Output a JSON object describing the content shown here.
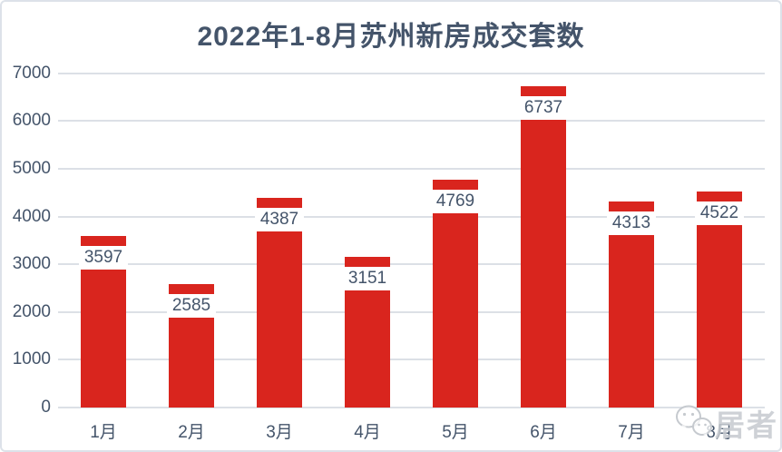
{
  "title": "2022年1-8月苏州新房成交套数",
  "watermark": {
    "text": "居者",
    "icon": "wechat-icon"
  },
  "colors": {
    "bar": "#d9251e",
    "text": "#44546a",
    "gridline": "#dce0e6",
    "card_border": "#dde2e9",
    "label_box_bg": "#ffffff",
    "watermark": "#c6cacf"
  },
  "chart_data": {
    "type": "bar",
    "title": "2022年1-8月苏州新房成交套数",
    "categories": [
      "1月",
      "2月",
      "3月",
      "4月",
      "5月",
      "6月",
      "7月",
      "8月"
    ],
    "values": [
      3597,
      2585,
      4387,
      3151,
      4769,
      6737,
      4313,
      4522
    ],
    "series_name": "成交套数",
    "xlabel": "",
    "ylabel": "",
    "ylim": [
      0,
      7000
    ],
    "yticks": [
      0,
      1000,
      2000,
      3000,
      4000,
      5000,
      6000,
      7000
    ],
    "grid": true,
    "legend_position": "none",
    "data_labels": "inside-end, white box, dark blue text",
    "bar_color": "#d9251e"
  }
}
